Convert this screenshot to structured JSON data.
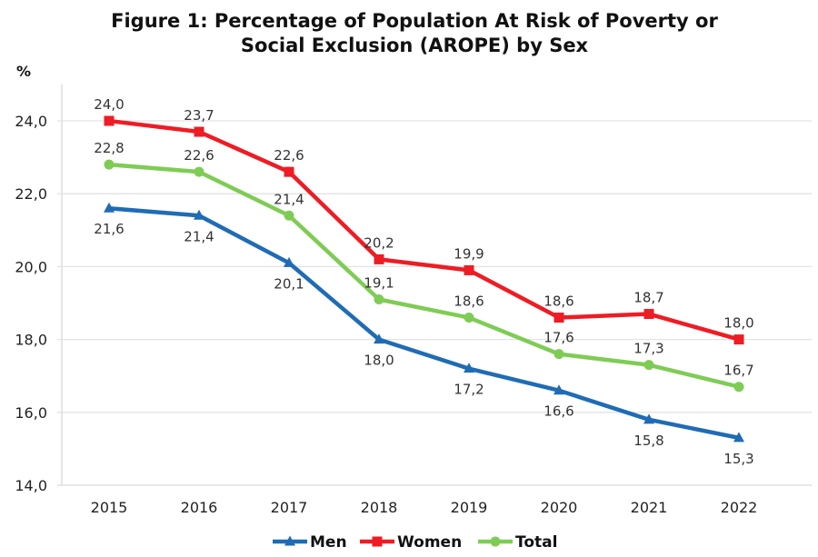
{
  "chart_data": {
    "type": "line",
    "title": "Figure 1: Percentage of Population At Risk of Poverty or Social Exclusion (AROPE) by Sex",
    "title_lines": [
      "Figure 1: Percentage of Population At Risk of Poverty or",
      "Social Exclusion (AROPE) by Sex"
    ],
    "xlabel": "",
    "ylabel": "%",
    "categories": [
      "2015",
      "2016",
      "2017",
      "2018",
      "2019",
      "2020",
      "2021",
      "2022"
    ],
    "ylim": [
      14.0,
      24.0
    ],
    "yticks": [
      14.0,
      16.0,
      18.0,
      20.0,
      22.0,
      24.0
    ],
    "ytick_labels": [
      "14,0",
      "16,0",
      "18,0",
      "20,0",
      "22,0",
      "24,0"
    ],
    "grid": true,
    "legend_position": "bottom",
    "series": [
      {
        "name": "Men",
        "color": "#1f6cb5",
        "marker": "triangle",
        "label_position": "below",
        "values": [
          21.6,
          21.4,
          20.1,
          18.0,
          17.2,
          16.6,
          15.8,
          15.3
        ],
        "labels": [
          "21,6",
          "21,4",
          "20,1",
          "18,0",
          "17,2",
          "16,6",
          "15,8",
          "15,3"
        ]
      },
      {
        "name": "Women",
        "color": "#ee1c24",
        "marker": "square",
        "label_position": "above",
        "values": [
          24.0,
          23.7,
          22.6,
          20.2,
          19.9,
          18.6,
          18.7,
          18.0
        ],
        "labels": [
          "24,0",
          "23,7",
          "22,6",
          "20,2",
          "19,9",
          "18,6",
          "18,7",
          "18,0"
        ]
      },
      {
        "name": "Total",
        "color": "#7fcc55",
        "marker": "circle",
        "label_position": "above",
        "values": [
          22.8,
          22.6,
          21.4,
          19.1,
          18.6,
          17.6,
          17.3,
          16.7
        ],
        "labels": [
          "22,8",
          "22,6",
          "21,4",
          "19,1",
          "18,6",
          "17,6",
          "17,3",
          "16,7"
        ]
      }
    ]
  }
}
